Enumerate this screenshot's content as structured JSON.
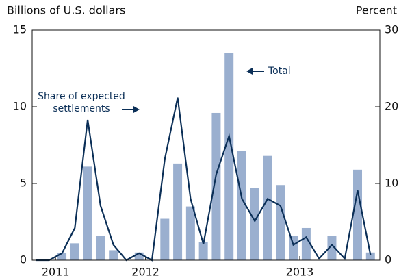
{
  "chart_data": {
    "type": "bar_line",
    "y_label": "Billions of U.S. dollars",
    "y2_label": "Percent",
    "categories": [
      null,
      null,
      "2011",
      null,
      null,
      null,
      null,
      null,
      null,
      "2012",
      null,
      null,
      null,
      null,
      null,
      null,
      null,
      null,
      null,
      null,
      null,
      "2013",
      null,
      null,
      null,
      null,
      null
    ],
    "series": [
      {
        "name": "Total",
        "color": "#9aafcf",
        "type": "bar",
        "values": [
          0,
          0,
          0.45,
          1.1,
          6.1,
          1.6,
          0.65,
          0,
          0.5,
          0,
          2.7,
          6.3,
          3.5,
          1.2,
          9.6,
          13.5,
          7.1,
          4.7,
          6.8,
          4.9,
          1.6,
          2.1,
          0,
          1.6,
          0,
          5.9,
          0.5
        ]
      },
      {
        "name": "Share of expected settlements",
        "color": "#0b2f57",
        "type": "line",
        "axis": "y2",
        "values": [
          0,
          0,
          0.9,
          4.2,
          18.3,
          7.1,
          2,
          0,
          0.9,
          0,
          13.2,
          21.2,
          8,
          2.1,
          11.2,
          16.2,
          8,
          5.1,
          8,
          7.1,
          2,
          3,
          0.2,
          2,
          0.2,
          9.1,
          0.7
        ]
      }
    ],
    "ylim": [
      0,
      15
    ],
    "yticks": [
      0,
      5,
      10,
      15
    ],
    "y2lim": [
      0,
      30
    ],
    "y2ticks": [
      0,
      10,
      20,
      30
    ]
  }
}
